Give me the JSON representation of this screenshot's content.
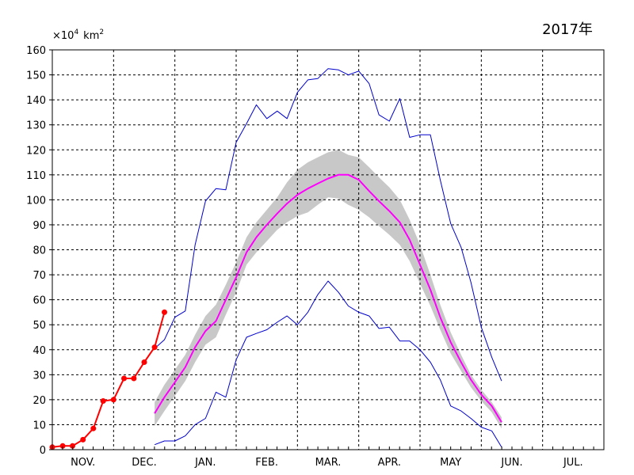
{
  "chart_data": {
    "type": "line",
    "title": "2017年",
    "unit": {
      "prefix": "×10",
      "exponent": "4",
      "base": "km",
      "power": "2"
    },
    "x_labels": [
      "NOV.",
      "DEC.",
      "JAN.",
      "FEB.",
      "MAR.",
      "APR.",
      "MAY",
      "JUN.",
      "JUL."
    ],
    "ylim": [
      0,
      160
    ],
    "yticks": [
      0,
      10,
      20,
      30,
      40,
      50,
      60,
      70,
      80,
      90,
      100,
      110,
      120,
      130,
      140,
      150,
      160
    ],
    "grid": true,
    "x_domain": [
      0,
      9
    ],
    "series": [
      {
        "kind": "max",
        "color": "#0000cc",
        "points": [
          [
            1.67,
            40.5
          ],
          [
            1.83,
            44
          ],
          [
            2.0,
            53
          ],
          [
            2.17,
            55.5
          ],
          [
            2.33,
            82
          ],
          [
            2.5,
            99.5
          ],
          [
            2.67,
            104.5
          ],
          [
            2.83,
            104
          ],
          [
            3.0,
            123
          ],
          [
            3.17,
            130.5
          ],
          [
            3.33,
            138
          ],
          [
            3.5,
            132.5
          ],
          [
            3.67,
            135.5
          ],
          [
            3.83,
            132.5
          ],
          [
            4.0,
            143
          ],
          [
            4.17,
            148
          ],
          [
            4.33,
            148.5
          ],
          [
            4.5,
            152.5
          ],
          [
            4.67,
            152
          ],
          [
            4.83,
            150
          ],
          [
            5.0,
            151.5
          ],
          [
            5.17,
            146.5
          ],
          [
            5.33,
            134
          ],
          [
            5.5,
            131.5
          ],
          [
            5.67,
            140.5
          ],
          [
            5.83,
            125
          ],
          [
            6.0,
            126
          ],
          [
            6.17,
            126
          ],
          [
            6.33,
            108
          ],
          [
            6.5,
            90.5
          ],
          [
            6.67,
            81
          ],
          [
            6.83,
            67
          ],
          [
            7.0,
            49
          ],
          [
            7.17,
            37
          ],
          [
            7.33,
            27.5
          ]
        ]
      },
      {
        "kind": "min",
        "color": "#0000cc",
        "points": [
          [
            1.67,
            2
          ],
          [
            1.83,
            3.5
          ],
          [
            2.0,
            3.5
          ],
          [
            2.17,
            5.5
          ],
          [
            2.33,
            10
          ],
          [
            2.5,
            12.5
          ],
          [
            2.67,
            23
          ],
          [
            2.83,
            21
          ],
          [
            3.0,
            36
          ],
          [
            3.17,
            45
          ],
          [
            3.33,
            46.5
          ],
          [
            3.5,
            48
          ],
          [
            3.67,
            51
          ],
          [
            3.83,
            53.5
          ],
          [
            4.0,
            50
          ],
          [
            4.17,
            55
          ],
          [
            4.33,
            62
          ],
          [
            4.5,
            67.5
          ],
          [
            4.67,
            63
          ],
          [
            4.83,
            57.5
          ],
          [
            5.0,
            55
          ],
          [
            5.17,
            53.5
          ],
          [
            5.33,
            48.5
          ],
          [
            5.5,
            49
          ],
          [
            5.67,
            43.5
          ],
          [
            5.83,
            43.5
          ],
          [
            6.0,
            40
          ],
          [
            6.17,
            35
          ],
          [
            6.33,
            28
          ],
          [
            6.5,
            17.5
          ],
          [
            6.67,
            15.5
          ],
          [
            6.83,
            12.5
          ],
          [
            7.0,
            9
          ],
          [
            7.17,
            7.5
          ],
          [
            7.33,
            1
          ]
        ]
      },
      {
        "kind": "mean",
        "color": "#ff00ff",
        "points": [
          [
            1.67,
            14.5
          ],
          [
            1.83,
            21
          ],
          [
            2.0,
            27
          ],
          [
            2.17,
            33
          ],
          [
            2.33,
            41
          ],
          [
            2.5,
            47.5
          ],
          [
            2.67,
            51.5
          ],
          [
            2.83,
            60
          ],
          [
            3.0,
            69
          ],
          [
            3.17,
            79
          ],
          [
            3.33,
            85
          ],
          [
            3.5,
            90
          ],
          [
            3.67,
            94.5
          ],
          [
            3.83,
            98.5
          ],
          [
            4.0,
            102
          ],
          [
            4.17,
            104.5
          ],
          [
            4.33,
            106.5
          ],
          [
            4.5,
            108.5
          ],
          [
            4.67,
            110
          ],
          [
            4.83,
            110
          ],
          [
            5.0,
            108
          ],
          [
            5.17,
            103.5
          ],
          [
            5.33,
            99.5
          ],
          [
            5.5,
            95.5
          ],
          [
            5.67,
            91
          ],
          [
            5.83,
            84
          ],
          [
            6.0,
            74
          ],
          [
            6.17,
            64
          ],
          [
            6.33,
            53
          ],
          [
            6.5,
            43
          ],
          [
            6.67,
            35
          ],
          [
            6.83,
            28
          ],
          [
            7.0,
            22
          ],
          [
            7.17,
            17.5
          ],
          [
            7.33,
            11
          ]
        ]
      },
      {
        "kind": "current",
        "color": "#ff0000",
        "points": [
          [
            0.0,
            1
          ],
          [
            0.17,
            1.5
          ],
          [
            0.33,
            1.5
          ],
          [
            0.5,
            4
          ],
          [
            0.67,
            8.5
          ],
          [
            0.83,
            19.5
          ],
          [
            1.0,
            20
          ],
          [
            1.17,
            28.5
          ],
          [
            1.33,
            28.5
          ],
          [
            1.5,
            35
          ],
          [
            1.67,
            41
          ],
          [
            1.83,
            55
          ]
        ]
      }
    ],
    "band": {
      "color": "#c8c8c8",
      "upper": [
        [
          1.67,
          19
        ],
        [
          1.83,
          26
        ],
        [
          2.0,
          32
        ],
        [
          2.17,
          38
        ],
        [
          2.33,
          46
        ],
        [
          2.5,
          53.5
        ],
        [
          2.67,
          58
        ],
        [
          2.83,
          66
        ],
        [
          3.0,
          75
        ],
        [
          3.17,
          85
        ],
        [
          3.33,
          91
        ],
        [
          3.5,
          96
        ],
        [
          3.67,
          101
        ],
        [
          3.83,
          107
        ],
        [
          4.0,
          112
        ],
        [
          4.17,
          115
        ],
        [
          4.33,
          117
        ],
        [
          4.5,
          119
        ],
        [
          4.67,
          120
        ],
        [
          4.83,
          118
        ],
        [
          5.0,
          117
        ],
        [
          5.17,
          113
        ],
        [
          5.33,
          109
        ],
        [
          5.5,
          105
        ],
        [
          5.67,
          100
        ],
        [
          5.83,
          92
        ],
        [
          6.0,
          82
        ],
        [
          6.17,
          70
        ],
        [
          6.33,
          58
        ],
        [
          6.5,
          47
        ],
        [
          6.67,
          38
        ],
        [
          6.83,
          30
        ],
        [
          7.0,
          24
        ],
        [
          7.17,
          19
        ],
        [
          7.33,
          13
        ]
      ],
      "lower": [
        [
          1.67,
          9.5
        ],
        [
          1.83,
          15.5
        ],
        [
          2.0,
          21.5
        ],
        [
          2.17,
          27.5
        ],
        [
          2.33,
          35
        ],
        [
          2.5,
          42
        ],
        [
          2.67,
          45
        ],
        [
          2.83,
          54
        ],
        [
          3.0,
          63
        ],
        [
          3.17,
          74
        ],
        [
          3.33,
          79
        ],
        [
          3.5,
          83.5
        ],
        [
          3.67,
          88
        ],
        [
          3.83,
          91
        ],
        [
          4.0,
          93.5
        ],
        [
          4.17,
          95
        ],
        [
          4.33,
          98
        ],
        [
          4.5,
          101
        ],
        [
          4.67,
          100.5
        ],
        [
          4.83,
          98
        ],
        [
          5.0,
          96
        ],
        [
          5.17,
          93
        ],
        [
          5.33,
          89.5
        ],
        [
          5.5,
          86
        ],
        [
          5.67,
          82
        ],
        [
          5.83,
          75.5
        ],
        [
          6.0,
          66.5
        ],
        [
          6.17,
          57.5
        ],
        [
          6.33,
          48
        ],
        [
          6.5,
          38.5
        ],
        [
          6.67,
          31.5
        ],
        [
          6.83,
          25
        ],
        [
          7.0,
          19.5
        ],
        [
          7.17,
          15
        ],
        [
          7.33,
          8.5
        ]
      ]
    }
  }
}
